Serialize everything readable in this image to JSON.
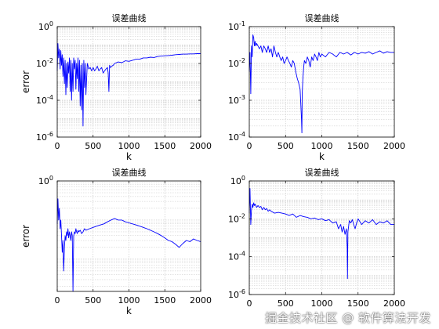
{
  "figure": {
    "watermark": "掘金技术社区 @ 软件算法开发",
    "colors": {
      "line": "#0000ff",
      "grid": "#c4c4c4",
      "axis": "#000000"
    }
  },
  "chart_data": [
    {
      "type": "line",
      "title": "误差曲线",
      "xlabel": "k",
      "ylabel": "error",
      "xlim": [
        0,
        2000
      ],
      "ylim": [
        1e-06,
        1
      ],
      "yscale": "log",
      "grid": true,
      "xticks": [
        0,
        500,
        1000,
        1500,
        2000
      ],
      "yticks": [
        {
          "value": 1e-06,
          "base": "10",
          "exp": "-6"
        },
        {
          "value": 0.0001,
          "base": "10",
          "exp": "-4"
        },
        {
          "value": 0.01,
          "base": "10",
          "exp": "-2"
        },
        {
          "value": 1,
          "base": "10",
          "exp": "0"
        }
      ],
      "series": [
        {
          "x": [
            0,
            10,
            20,
            30,
            40,
            50,
            60,
            70,
            80,
            90,
            100,
            110,
            120,
            130,
            140,
            150,
            160,
            170,
            180,
            190,
            200,
            210,
            220,
            230,
            240,
            250,
            260,
            270,
            280,
            290,
            300,
            310,
            320,
            330,
            340,
            350,
            360,
            370,
            380,
            390,
            400,
            420,
            440,
            460,
            480,
            500,
            520,
            540,
            560,
            580,
            600,
            620,
            640,
            660,
            680,
            700,
            710,
            720,
            730,
            740,
            760,
            780,
            800,
            850,
            900,
            950,
            1000,
            1050,
            1100,
            1150,
            1200,
            1250,
            1300,
            1350,
            1400,
            1450,
            1500,
            1550,
            1600,
            1650,
            1700,
            1750,
            1800,
            1850,
            1900,
            1950,
            2000
          ],
          "y": [
            0.004,
            0.12,
            0.02,
            0.06,
            0.005,
            0.05,
            0.008,
            0.03,
            0.002,
            0.02,
            0.0008,
            0.015,
            0.0002,
            0.01,
            0.0005,
            0.012,
            0.003,
            0.02,
            0.0003,
            0.015,
            0.0001,
            0.01,
            0.0003,
            0.02,
            0.005,
            0.015,
            0.0004,
            0.01,
            0.0015,
            0.02,
            0.0003,
            0.015,
            5e-05,
            0.008,
            3e-05,
            0.01,
            4e-06,
            0.015,
            0.0005,
            0.01,
            0.0002,
            0.01,
            0.005,
            0.006,
            0.004,
            0.006,
            0.004,
            0.005,
            0.007,
            0.004,
            0.005,
            0.006,
            0.003,
            0.004,
            0.005,
            0.006,
            0.003,
            0.0003,
            0.008,
            0.006,
            0.007,
            0.008,
            0.01,
            0.012,
            0.011,
            0.014,
            0.013,
            0.015,
            0.017,
            0.017,
            0.02,
            0.02,
            0.022,
            0.021,
            0.024,
            0.025,
            0.026,
            0.027,
            0.028,
            0.03,
            0.031,
            0.032,
            0.032,
            0.033,
            0.033,
            0.034,
            0.034
          ]
        }
      ]
    },
    {
      "type": "line",
      "title": "误差曲线",
      "xlabel": "k",
      "ylabel": "",
      "xlim": [
        0,
        2000
      ],
      "ylim": [
        0.0001,
        0.1
      ],
      "yscale": "log",
      "grid": true,
      "xticks": [
        0,
        500,
        1000,
        1500,
        2000
      ],
      "yticks": [
        {
          "value": 0.0001,
          "base": "10",
          "exp": "-4"
        },
        {
          "value": 0.001,
          "base": "10",
          "exp": "-3"
        },
        {
          "value": 0.01,
          "base": "10",
          "exp": "-2"
        },
        {
          "value": 0.1,
          "base": "10",
          "exp": "-1"
        }
      ],
      "series": [
        {
          "x": [
            0,
            10,
            20,
            30,
            40,
            50,
            60,
            70,
            80,
            90,
            100,
            120,
            140,
            160,
            180,
            200,
            220,
            240,
            260,
            280,
            300,
            320,
            340,
            360,
            380,
            400,
            420,
            440,
            460,
            480,
            500,
            520,
            540,
            560,
            580,
            600,
            620,
            640,
            660,
            680,
            700,
            710,
            720,
            725,
            730,
            740,
            750,
            760,
            780,
            800,
            820,
            840,
            860,
            880,
            900,
            920,
            940,
            960,
            980,
            1000,
            1050,
            1100,
            1150,
            1200,
            1250,
            1300,
            1350,
            1400,
            1450,
            1500,
            1550,
            1600,
            1650,
            1700,
            1750,
            1800,
            1850,
            1900,
            1950,
            2000
          ],
          "y": [
            0.006,
            0.02,
            0.0015,
            0.03,
            0.015,
            0.06,
            0.05,
            0.03,
            0.04,
            0.03,
            0.035,
            0.03,
            0.025,
            0.03,
            0.02,
            0.03,
            0.025,
            0.02,
            0.03,
            0.02,
            0.025,
            0.015,
            0.03,
            0.02,
            0.015,
            0.02,
            0.015,
            0.012,
            0.015,
            0.01,
            0.012,
            0.015,
            0.012,
            0.01,
            0.008,
            0.012,
            0.01,
            0.006,
            0.004,
            0.003,
            0.002,
            0.0008,
            0.0003,
            0.00013,
            0.0015,
            0.004,
            0.008,
            0.012,
            0.01,
            0.015,
            0.012,
            0.008,
            0.015,
            0.012,
            0.018,
            0.015,
            0.012,
            0.02,
            0.015,
            0.018,
            0.015,
            0.02,
            0.018,
            0.015,
            0.02,
            0.018,
            0.02,
            0.017,
            0.02,
            0.018,
            0.02,
            0.019,
            0.021,
            0.018,
            0.02,
            0.022,
            0.019,
            0.021,
            0.02,
            0.02
          ]
        }
      ]
    },
    {
      "type": "line",
      "title": "误差曲线",
      "xlabel": "k",
      "ylabel": "error",
      "xlim": [
        0,
        2000
      ],
      "ylim": [
        0.0015,
        1
      ],
      "yscale": "log",
      "grid": true,
      "xticks": [
        0,
        500,
        1000,
        1500,
        2000
      ],
      "yticks": [
        {
          "value": 1,
          "base": "10",
          "exp": "0"
        }
      ],
      "series": [
        {
          "x": [
            0,
            10,
            20,
            30,
            40,
            50,
            60,
            70,
            80,
            90,
            100,
            110,
            120,
            130,
            140,
            150,
            160,
            170,
            180,
            190,
            200,
            210,
            220,
            230,
            240,
            250,
            260,
            270,
            280,
            290,
            300,
            320,
            340,
            360,
            380,
            400,
            450,
            500,
            550,
            600,
            650,
            700,
            750,
            800,
            850,
            900,
            950,
            1000,
            1050,
            1100,
            1150,
            1200,
            1250,
            1300,
            1350,
            1400,
            1450,
            1500,
            1550,
            1600,
            1650,
            1700,
            1750,
            1800,
            1850,
            1900,
            1950,
            2000
          ],
          "y": [
            0.08,
            0.35,
            0.1,
            0.2,
            0.06,
            0.1,
            0.04,
            0.015,
            0.03,
            0.005,
            0.02,
            0.04,
            0.03,
            0.05,
            0.04,
            0.06,
            0.035,
            0.05,
            0.04,
            0.03,
            0.05,
            0.04,
            0.0015,
            0.04,
            0.05,
            0.045,
            0.06,
            0.05,
            0.045,
            0.055,
            0.05,
            0.055,
            0.045,
            0.05,
            0.06,
            0.055,
            0.06,
            0.065,
            0.07,
            0.075,
            0.08,
            0.09,
            0.1,
            0.11,
            0.1,
            0.1,
            0.09,
            0.085,
            0.08,
            0.075,
            0.07,
            0.065,
            0.06,
            0.055,
            0.05,
            0.045,
            0.04,
            0.035,
            0.03,
            0.028,
            0.024,
            0.02,
            0.025,
            0.03,
            0.028,
            0.033,
            0.03,
            0.028
          ]
        }
      ]
    },
    {
      "type": "line",
      "title": "误差曲线",
      "xlabel": "",
      "ylabel": "",
      "xlim": [
        0,
        2000
      ],
      "ylim": [
        1e-06,
        1
      ],
      "yscale": "log",
      "grid": true,
      "xticks": [
        0,
        500,
        1000,
        1500,
        2000
      ],
      "yticks": [
        {
          "value": 1e-06,
          "base": "10",
          "exp": "-6"
        },
        {
          "value": 0.0001,
          "base": "10",
          "exp": "-4"
        },
        {
          "value": 0.01,
          "base": "10",
          "exp": "-2"
        },
        {
          "value": 1,
          "base": "10",
          "exp": "0"
        }
      ],
      "series": [
        {
          "x": [
            0,
            10,
            20,
            30,
            40,
            50,
            60,
            70,
            80,
            90,
            100,
            120,
            140,
            160,
            180,
            200,
            220,
            240,
            260,
            280,
            300,
            350,
            400,
            450,
            500,
            550,
            600,
            650,
            700,
            750,
            800,
            850,
            900,
            950,
            1000,
            1050,
            1100,
            1150,
            1200,
            1230,
            1260,
            1280,
            1300,
            1320,
            1340,
            1350,
            1355,
            1360,
            1370,
            1380,
            1400,
            1420,
            1440,
            1460,
            1480,
            1500,
            1550,
            1600,
            1650,
            1700,
            1750,
            1800,
            1850,
            1900,
            1950,
            2000
          ],
          "y": [
            0.02,
            0.4,
            0.005,
            0.03,
            0.06,
            0.04,
            0.07,
            0.05,
            0.06,
            0.05,
            0.04,
            0.05,
            0.04,
            0.045,
            0.03,
            0.04,
            0.03,
            0.035,
            0.025,
            0.03,
            0.025,
            0.02,
            0.022,
            0.02,
            0.018,
            0.015,
            0.018,
            0.012,
            0.015,
            0.013,
            0.012,
            0.01,
            0.011,
            0.009,
            0.01,
            0.008,
            0.009,
            0.006,
            0.007,
            0.003,
            0.005,
            0.002,
            0.004,
            0.0015,
            0.003,
            0.0003,
            7e-06,
            0.002,
            0.004,
            0.008,
            0.006,
            0.009,
            0.005,
            0.003,
            0.006,
            0.01,
            0.005,
            0.008,
            0.006,
            0.009,
            0.005,
            0.007,
            0.006,
            0.008,
            0.005,
            0.005
          ]
        }
      ]
    }
  ]
}
